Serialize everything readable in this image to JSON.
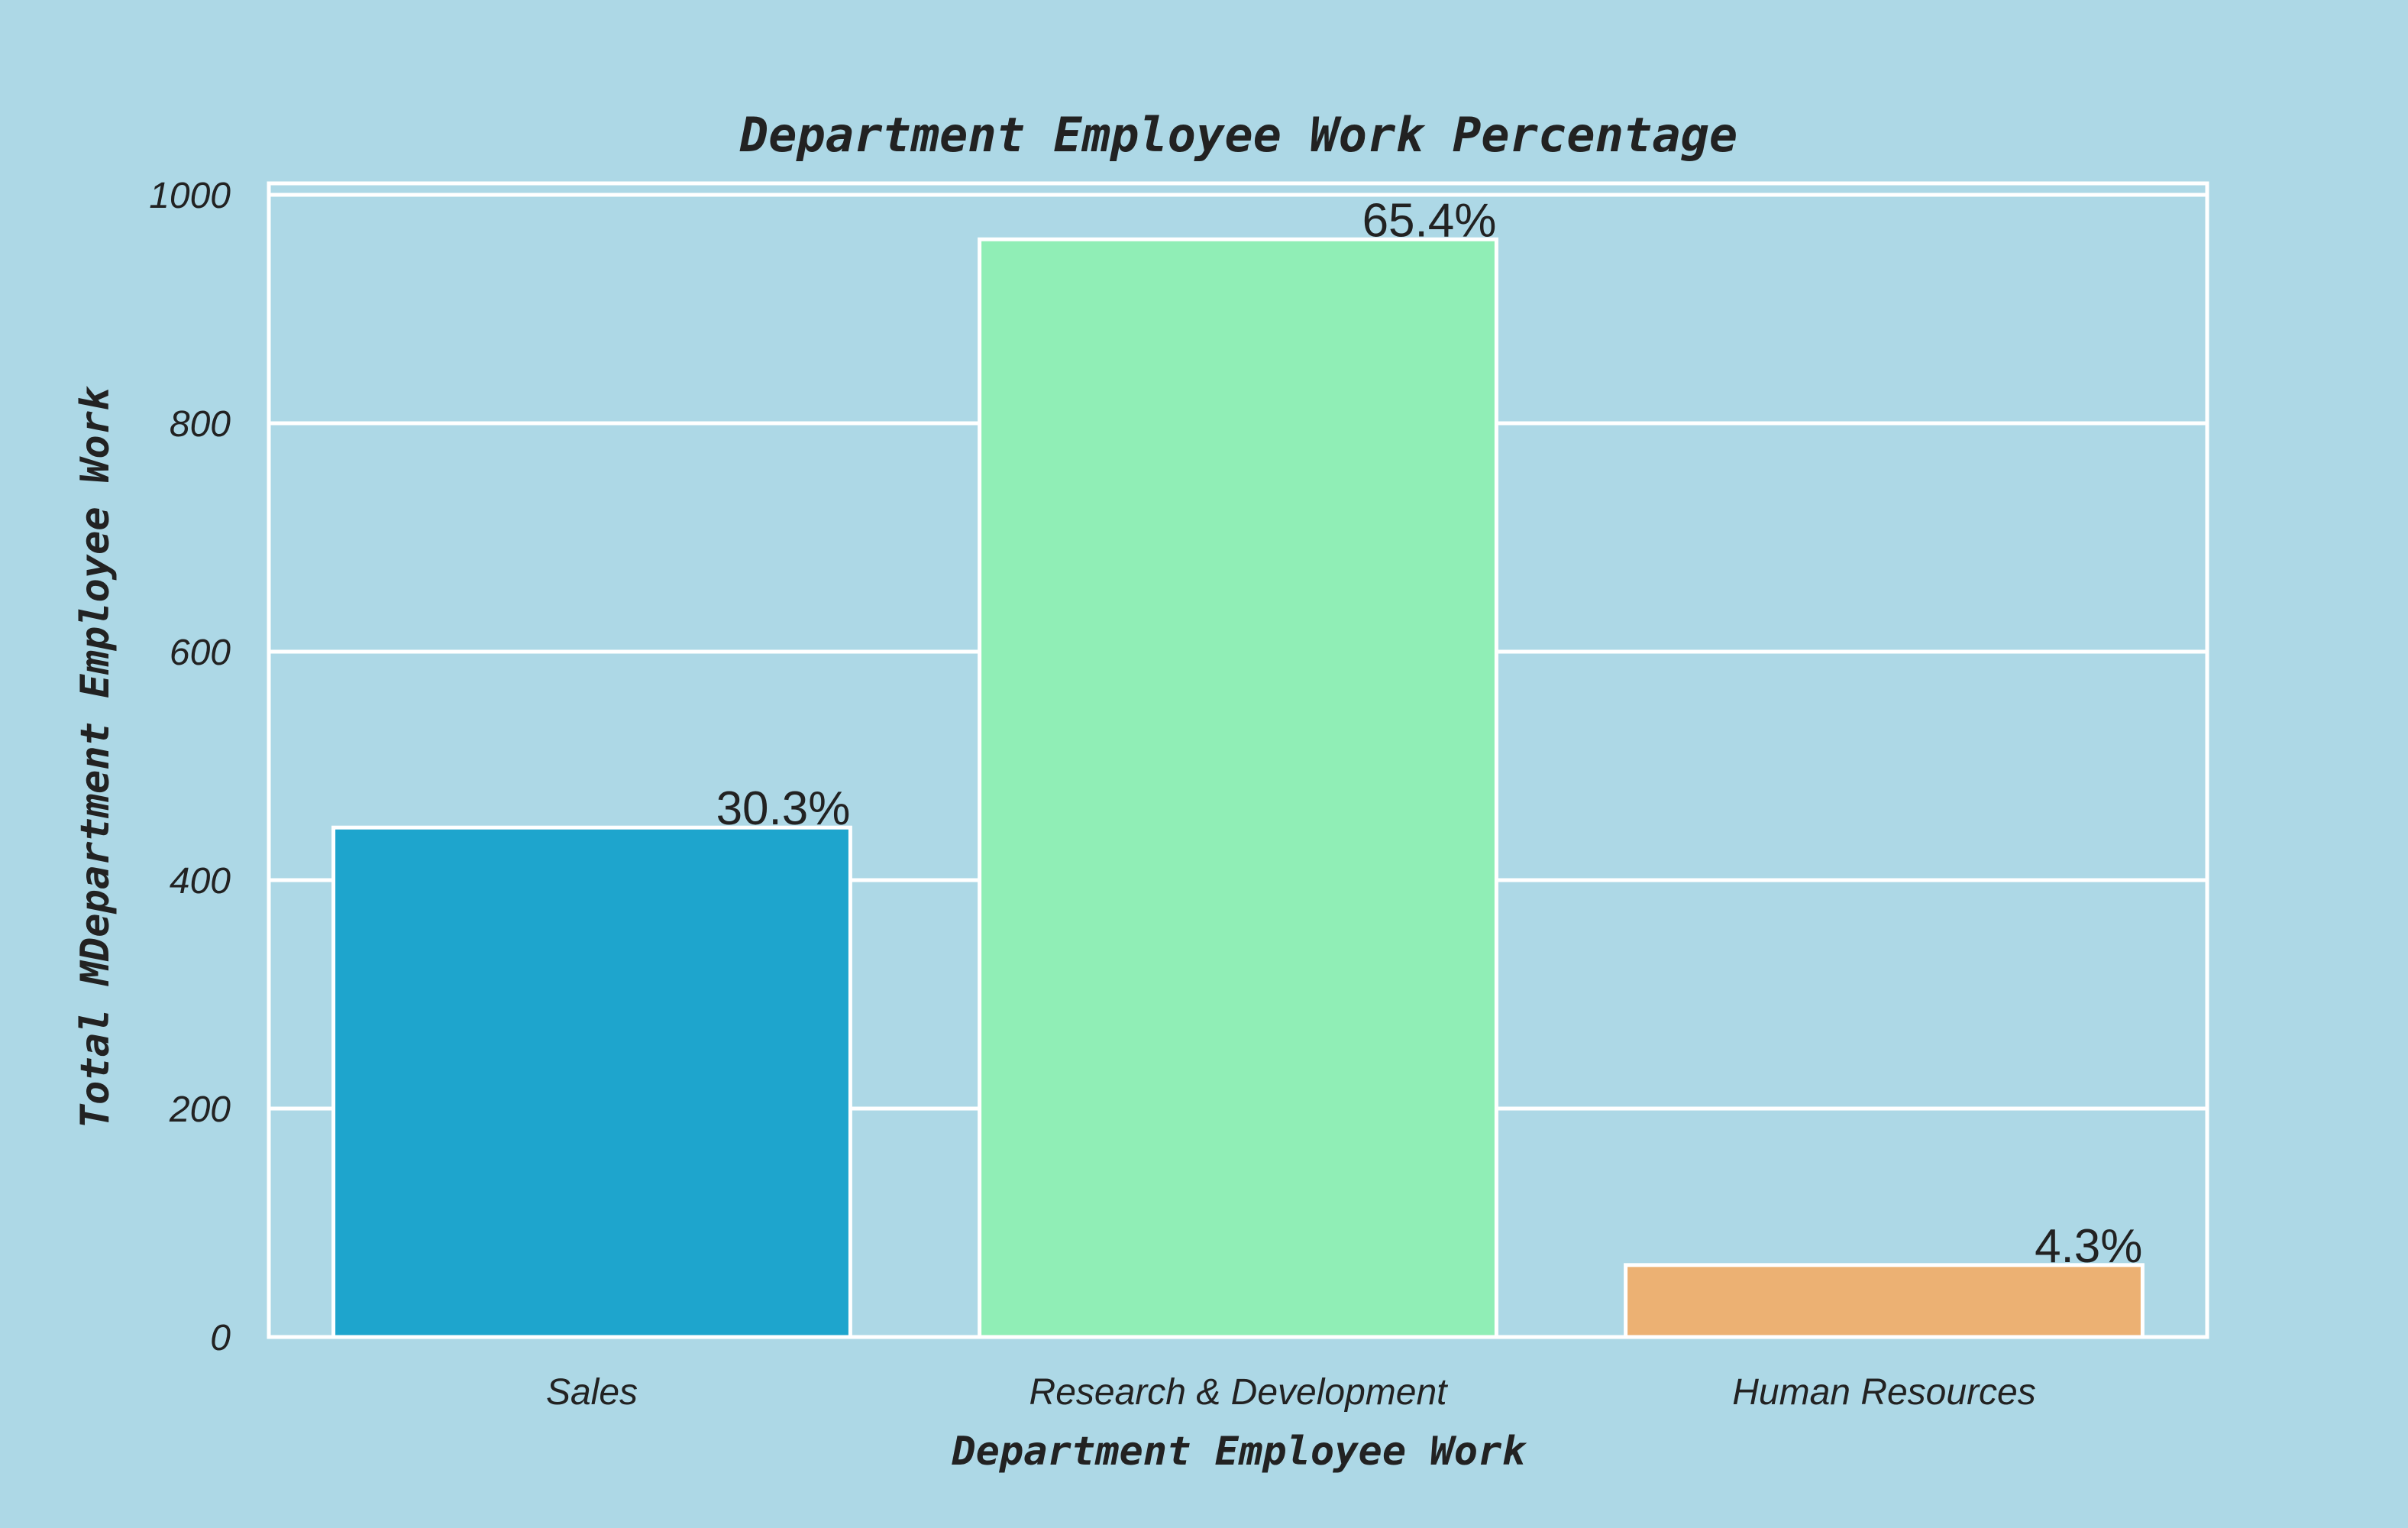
{
  "chart_data": {
    "type": "bar",
    "title": "Department Employee Work Percentage",
    "xlabel": "Department Employee Work",
    "ylabel": "Total MDepartment Employee Work",
    "categories": [
      "Sales",
      "Research & Development",
      "Human Resources"
    ],
    "values": [
      446,
      961,
      63
    ],
    "bar_labels": [
      "30.3%",
      "65.4%",
      "4.3%"
    ],
    "colors": [
      "#1ea5cd",
      "#90eeb6",
      "#ecb173"
    ],
    "ylim": [
      0,
      1010
    ],
    "yticks": [
      0,
      200,
      400,
      600,
      800,
      1000
    ],
    "ytick_labels": [
      "0",
      "200",
      "400",
      "600",
      "800",
      "1000"
    ],
    "grid": true,
    "background": "#add8e6",
    "gridcolor": "#ffffff"
  }
}
